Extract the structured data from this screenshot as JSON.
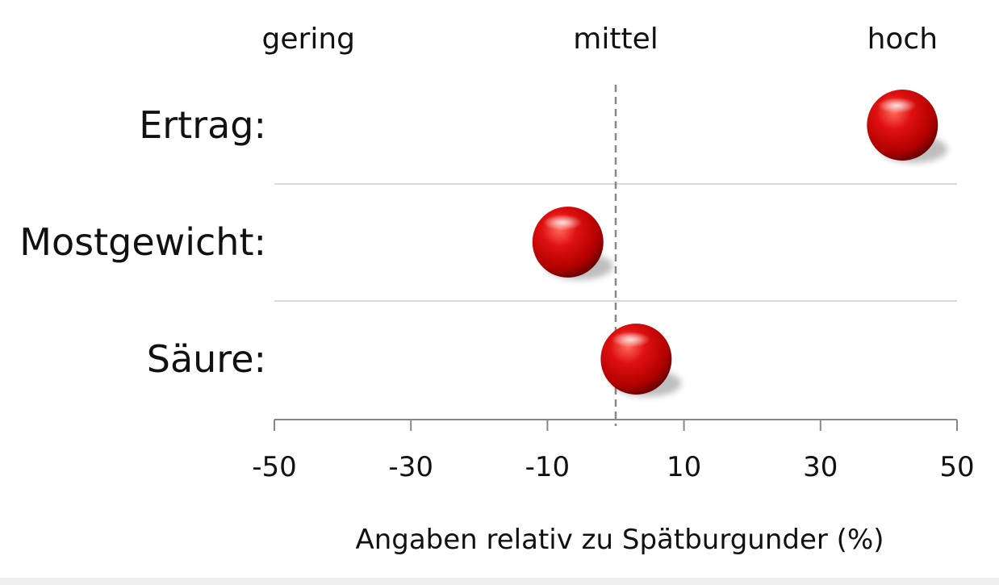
{
  "chart_data": {
    "type": "scatter",
    "xlabel": "Angaben relativ zu Spätburgunder (%)",
    "xlim": [
      -50,
      50
    ],
    "x_ticks": [
      -50,
      -30,
      -10,
      10,
      30,
      50
    ],
    "x_tick_labels": [
      "-50",
      "-30",
      "-10",
      "10",
      "30",
      "50"
    ],
    "reference_line_x": 0,
    "top_labels": [
      {
        "text": "gering",
        "x": -45
      },
      {
        "text": "mittel",
        "x": 0
      },
      {
        "text": "hoch",
        "x": 42
      }
    ],
    "categories": [
      "Ertrag:",
      "Mostgewicht:",
      "Säure:"
    ],
    "values": [
      42,
      -7,
      3
    ],
    "colors": {
      "marker": "#cc0000",
      "reference_line": "#888888",
      "grid": "#d9d9d9",
      "axis": "#888888"
    }
  }
}
